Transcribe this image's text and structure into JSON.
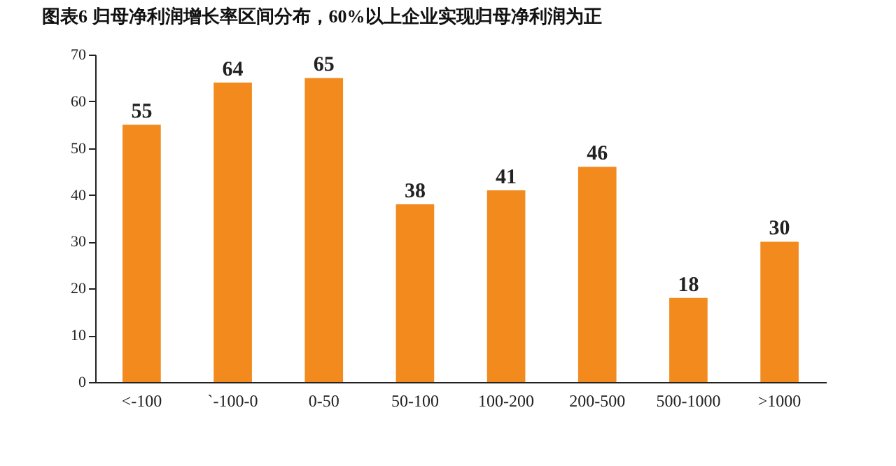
{
  "chart_data": {
    "type": "bar",
    "title": "图表6  归母净利润增长率区间分布，60%以上企业实现归母净利润为正",
    "categories": [
      "<-100",
      "`-100-0",
      "0-50",
      "50-100",
      "100-200",
      "200-500",
      "500-1000",
      ">1000"
    ],
    "values": [
      55,
      64,
      65,
      38,
      41,
      46,
      18,
      30
    ],
    "color": "#f28a1e",
    "ylim": [
      0,
      70
    ],
    "yticks": [
      0,
      10,
      20,
      30,
      40,
      50,
      60,
      70
    ],
    "data_labels": true,
    "grid": false
  }
}
